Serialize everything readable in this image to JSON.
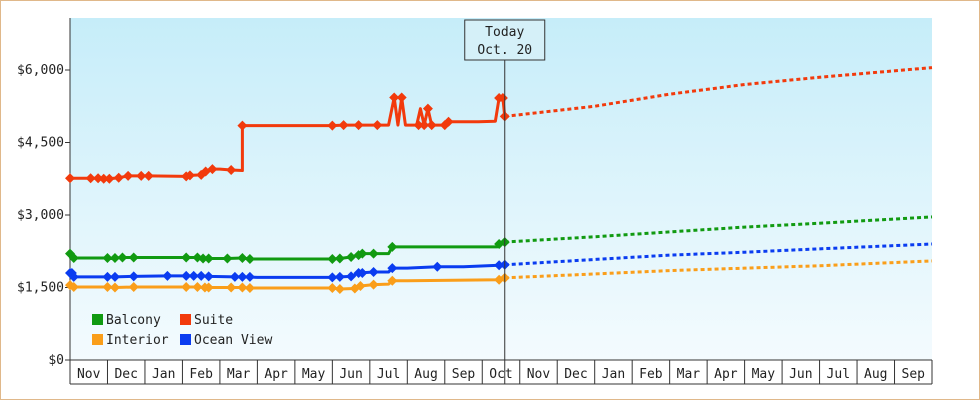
{
  "chart_data": {
    "type": "line",
    "y_ticks": [
      "$0",
      "$1,500",
      "$3,000",
      "$4,500",
      "$6,000"
    ],
    "y_tick_values": [
      0,
      1500,
      3000,
      4500,
      6000
    ],
    "ylim": [
      0,
      6000
    ],
    "months": [
      "Nov",
      "Dec",
      "Jan",
      "Feb",
      "Mar",
      "Apr",
      "May",
      "Jun",
      "Jul",
      "Aug",
      "Sep",
      "Oct",
      "Nov",
      "Dec",
      "Jan",
      "Feb",
      "Mar",
      "Apr",
      "May",
      "Jun",
      "Jul",
      "Aug",
      "Sep"
    ],
    "today": {
      "label": "Today",
      "date": "Oct. 20",
      "x": 11.6
    },
    "legend": {
      "placement": "bottom-left"
    },
    "series": [
      {
        "name": "Suite",
        "color": "#f23a0c",
        "steps": [
          [
            0.0,
            3760
          ],
          [
            0.6,
            3760
          ],
          [
            0.75,
            3760
          ],
          [
            0.9,
            3750
          ],
          [
            1.05,
            3750
          ],
          [
            1.3,
            3770
          ],
          [
            1.55,
            3810
          ],
          [
            1.9,
            3810
          ],
          [
            2.1,
            3810
          ],
          [
            3.1,
            3800
          ],
          [
            3.2,
            3820
          ],
          [
            3.5,
            3830
          ],
          [
            3.62,
            3900
          ],
          [
            3.8,
            3950
          ],
          [
            4.0,
            3950
          ],
          [
            4.3,
            3930
          ],
          [
            4.6,
            3920
          ],
          [
            4.6,
            4850
          ],
          [
            5.5,
            4850
          ],
          [
            7.0,
            4850
          ],
          [
            7.3,
            4860
          ],
          [
            7.7,
            4860
          ],
          [
            8.2,
            4860
          ],
          [
            8.5,
            4860
          ],
          [
            8.65,
            5430
          ],
          [
            8.75,
            4860
          ],
          [
            8.85,
            5430
          ],
          [
            8.95,
            4860
          ],
          [
            9.25,
            4860
          ],
          [
            9.35,
            5200
          ],
          [
            9.45,
            4860
          ],
          [
            9.55,
            5200
          ],
          [
            9.65,
            4860
          ],
          [
            10.0,
            4860
          ],
          [
            10.1,
            4930
          ],
          [
            10.9,
            4930
          ],
          [
            11.35,
            4940
          ],
          [
            11.45,
            5420
          ],
          [
            11.55,
            5420
          ],
          [
            11.6,
            5040
          ]
        ],
        "points_x": [
          0.0,
          0.55,
          0.75,
          0.9,
          1.05,
          1.3,
          1.55,
          1.9,
          2.1,
          3.1,
          3.2,
          3.5,
          3.62,
          3.8,
          4.3,
          4.6,
          7.0,
          7.3,
          7.7,
          8.2,
          8.65,
          8.85,
          9.3,
          9.45,
          9.55,
          9.65,
          10.0,
          10.1,
          11.45,
          11.55,
          11.6
        ],
        "forecast": [
          [
            11.6,
            5040
          ],
          [
            14,
            5250
          ],
          [
            16,
            5500
          ],
          [
            18,
            5700
          ],
          [
            20,
            5850
          ],
          [
            23,
            6050
          ]
        ]
      },
      {
        "name": "Balcony",
        "color": "#119a11",
        "steps": [
          [
            0.0,
            2200
          ],
          [
            0.1,
            2110
          ],
          [
            1.0,
            2110
          ],
          [
            1.1,
            2100
          ],
          [
            1.2,
            2110
          ],
          [
            1.4,
            2120
          ],
          [
            1.7,
            2120
          ],
          [
            3.1,
            2120
          ],
          [
            3.4,
            2120
          ],
          [
            3.55,
            2100
          ],
          [
            3.7,
            2100
          ],
          [
            4.2,
            2100
          ],
          [
            4.6,
            2110
          ],
          [
            4.8,
            2090
          ],
          [
            5.0,
            2090
          ],
          [
            7.0,
            2090
          ],
          [
            7.2,
            2100
          ],
          [
            7.5,
            2130
          ],
          [
            7.7,
            2170
          ],
          [
            7.8,
            2200
          ],
          [
            8.1,
            2200
          ],
          [
            8.5,
            2200
          ],
          [
            8.6,
            2340
          ],
          [
            9.0,
            2340
          ],
          [
            11.4,
            2340
          ],
          [
            11.45,
            2400
          ],
          [
            11.6,
            2440
          ]
        ],
        "points_x": [
          0.0,
          0.1,
          1.0,
          1.2,
          1.4,
          1.7,
          3.1,
          3.4,
          3.55,
          3.7,
          4.2,
          4.6,
          4.8,
          7.0,
          7.2,
          7.5,
          7.7,
          7.8,
          8.1,
          8.6,
          11.45,
          11.6
        ],
        "forecast": [
          [
            11.6,
            2440
          ],
          [
            14,
            2550
          ],
          [
            16,
            2650
          ],
          [
            18,
            2750
          ],
          [
            20,
            2830
          ],
          [
            23,
            2960
          ]
        ]
      },
      {
        "name": "Ocean View",
        "color": "#0a3cf0",
        "steps": [
          [
            0.0,
            1800
          ],
          [
            0.1,
            1720
          ],
          [
            1.0,
            1720
          ],
          [
            1.2,
            1720
          ],
          [
            1.7,
            1730
          ],
          [
            2.6,
            1740
          ],
          [
            3.1,
            1740
          ],
          [
            3.5,
            1740
          ],
          [
            3.7,
            1730
          ],
          [
            4.4,
            1720
          ],
          [
            4.6,
            1720
          ],
          [
            5.0,
            1710
          ],
          [
            7.0,
            1710
          ],
          [
            7.2,
            1720
          ],
          [
            7.5,
            1730
          ],
          [
            7.7,
            1800
          ],
          [
            8.1,
            1820
          ],
          [
            8.5,
            1820
          ],
          [
            8.6,
            1900
          ],
          [
            9.0,
            1900
          ],
          [
            9.8,
            1930
          ],
          [
            10.5,
            1930
          ],
          [
            11.45,
            1960
          ],
          [
            11.6,
            1970
          ]
        ],
        "points_x": [
          0.0,
          0.05,
          0.1,
          1.0,
          1.2,
          1.7,
          2.6,
          3.1,
          3.3,
          3.5,
          3.7,
          4.4,
          4.6,
          4.8,
          7.0,
          7.2,
          7.5,
          7.7,
          7.8,
          8.1,
          8.6,
          9.8,
          11.45,
          11.6
        ],
        "forecast": [
          [
            11.6,
            1970
          ],
          [
            14,
            2080
          ],
          [
            16,
            2170
          ],
          [
            18,
            2230
          ],
          [
            20,
            2300
          ],
          [
            23,
            2400
          ]
        ]
      },
      {
        "name": "Interior",
        "color": "#fa9e1a",
        "steps": [
          [
            0.0,
            1550
          ],
          [
            0.1,
            1510
          ],
          [
            1.0,
            1510
          ],
          [
            1.2,
            1500
          ],
          [
            1.7,
            1510
          ],
          [
            3.1,
            1510
          ],
          [
            3.4,
            1510
          ],
          [
            3.6,
            1500
          ],
          [
            3.7,
            1500
          ],
          [
            4.3,
            1500
          ],
          [
            4.6,
            1500
          ],
          [
            4.8,
            1490
          ],
          [
            5.0,
            1490
          ],
          [
            7.0,
            1490
          ],
          [
            7.2,
            1470
          ],
          [
            7.6,
            1480
          ],
          [
            7.75,
            1530
          ],
          [
            8.1,
            1560
          ],
          [
            8.5,
            1570
          ],
          [
            8.6,
            1640
          ],
          [
            9.0,
            1640
          ],
          [
            11.45,
            1660
          ],
          [
            11.6,
            1700
          ]
        ],
        "points_x": [
          0.0,
          0.1,
          1.0,
          1.2,
          1.7,
          3.1,
          3.4,
          3.6,
          3.7,
          4.3,
          4.6,
          4.8,
          7.0,
          7.2,
          7.6,
          7.75,
          8.1,
          8.6,
          11.45,
          11.6
        ],
        "forecast": [
          [
            11.6,
            1700
          ],
          [
            14,
            1780
          ],
          [
            16,
            1850
          ],
          [
            18,
            1900
          ],
          [
            20,
            1950
          ],
          [
            23,
            2050
          ]
        ]
      }
    ],
    "legend_order": [
      "Balcony",
      "Suite",
      "Interior",
      "Ocean View"
    ]
  }
}
